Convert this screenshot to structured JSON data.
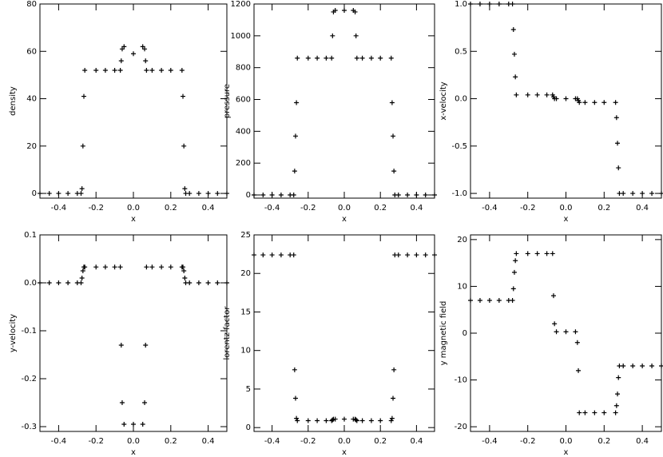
{
  "chart_data": [
    {
      "type": "scatter",
      "ylabel": "density",
      "xlabel": "x",
      "color": "#000000",
      "x": [
        -0.5,
        -0.45,
        -0.4,
        -0.35,
        -0.3,
        -0.28,
        -0.275,
        -0.27,
        -0.265,
        -0.26,
        -0.2,
        -0.15,
        -0.1,
        -0.07,
        -0.065,
        -0.06,
        -0.05,
        0,
        0.05,
        0.06,
        0.065,
        0.07,
        0.1,
        0.15,
        0.2,
        0.26,
        0.265,
        0.27,
        0.275,
        0.28,
        0.3,
        0.35,
        0.4,
        0.45,
        0.5
      ],
      "values": [
        0,
        0,
        0,
        0,
        0,
        0,
        2,
        20,
        41,
        52,
        52,
        52,
        52,
        52,
        56,
        61,
        62,
        59,
        62,
        61,
        56,
        52,
        52,
        52,
        52,
        52,
        41,
        20,
        2,
        0,
        0,
        0,
        0,
        0,
        0
      ],
      "xlim": [
        -0.5,
        0.5
      ],
      "xticks": [
        -0.4,
        -0.2,
        {
          "value": 0,
          "label": "0.0"
        },
        0.2,
        0.4
      ],
      "ylim": [
        -2,
        80
      ],
      "yticks": [
        0,
        20,
        40,
        60,
        80
      ]
    },
    {
      "type": "scatter",
      "ylabel": "pressure",
      "xlabel": "x",
      "color": "#000000",
      "x": [
        -0.5,
        -0.45,
        -0.4,
        -0.35,
        -0.3,
        -0.28,
        -0.275,
        -0.27,
        -0.265,
        -0.26,
        -0.2,
        -0.15,
        -0.1,
        -0.07,
        -0.065,
        -0.06,
        -0.05,
        0,
        0.05,
        0.06,
        0.065,
        0.07,
        0.1,
        0.15,
        0.2,
        0.26,
        0.265,
        0.27,
        0.275,
        0.28,
        0.3,
        0.35,
        0.4,
        0.45,
        0.5
      ],
      "values": [
        0,
        0,
        0,
        0,
        0,
        0,
        150,
        370,
        580,
        860,
        860,
        860,
        860,
        860,
        1000,
        1150,
        1160,
        1160,
        1160,
        1150,
        1000,
        860,
        860,
        860,
        860,
        860,
        580,
        370,
        150,
        0,
        0,
        0,
        0,
        0,
        0
      ],
      "xlim": [
        -0.5,
        0.5
      ],
      "xticks": [
        -0.4,
        -0.2,
        {
          "value": 0,
          "label": "0.0"
        },
        0.2,
        0.4
      ],
      "ylim": [
        -20,
        1200
      ],
      "yticks": [
        0,
        200,
        400,
        600,
        800,
        1000,
        1200
      ]
    },
    {
      "type": "scatter",
      "ylabel": "x-velocity",
      "xlabel": "x",
      "color": "#000000",
      "x": [
        -0.5,
        -0.45,
        -0.4,
        -0.35,
        -0.3,
        -0.28,
        -0.275,
        -0.27,
        -0.265,
        -0.26,
        -0.2,
        -0.15,
        -0.1,
        -0.07,
        -0.065,
        -0.06,
        -0.05,
        0,
        0.05,
        0.06,
        0.065,
        0.07,
        0.1,
        0.15,
        0.2,
        0.26,
        0.265,
        0.27,
        0.275,
        0.28,
        0.3,
        0.35,
        0.4,
        0.45,
        0.5
      ],
      "values": [
        1,
        1,
        1,
        1,
        1,
        1,
        0.73,
        0.47,
        0.23,
        0.04,
        0.04,
        0.04,
        0.04,
        0.04,
        0.02,
        0,
        0,
        0,
        0,
        0,
        -0.02,
        -0.04,
        -0.04,
        -0.04,
        -0.04,
        -0.04,
        -0.2,
        -0.47,
        -0.73,
        -1,
        -1,
        -1,
        -1,
        -1,
        -1
      ],
      "xlim": [
        -0.5,
        0.5
      ],
      "xticks": [
        -0.4,
        -0.2,
        {
          "value": 0,
          "label": "0.0"
        },
        0.2,
        0.4
      ],
      "ylim": [
        -1.05,
        1.0
      ],
      "yticks": [
        {
          "value": -1,
          "label": "-1.0"
        },
        -0.5,
        {
          "value": 0,
          "label": "0.0"
        },
        0.5,
        {
          "value": 1,
          "label": "1.0"
        }
      ]
    },
    {
      "type": "scatter",
      "ylabel": "y-velocity",
      "xlabel": "x",
      "color": "#000000",
      "x": [
        -0.5,
        -0.45,
        -0.4,
        -0.35,
        -0.3,
        -0.28,
        -0.275,
        -0.27,
        -0.265,
        -0.26,
        -0.2,
        -0.15,
        -0.1,
        -0.07,
        -0.065,
        -0.06,
        -0.05,
        0,
        0.05,
        0.06,
        0.065,
        0.07,
        0.1,
        0.15,
        0.2,
        0.26,
        0.265,
        0.27,
        0.275,
        0.28,
        0.3,
        0.35,
        0.4,
        0.45,
        0.5
      ],
      "values": [
        0,
        0,
        0,
        0,
        0,
        0,
        0.01,
        0.025,
        0.033,
        0.033,
        0.033,
        0.033,
        0.033,
        0.033,
        -0.13,
        -0.25,
        -0.295,
        -0.295,
        -0.295,
        -0.25,
        -0.13,
        0.033,
        0.033,
        0.033,
        0.033,
        0.033,
        0.033,
        0.025,
        0.01,
        0,
        0,
        0,
        0,
        0,
        0
      ],
      "xlim": [
        -0.5,
        0.5
      ],
      "xticks": [
        -0.4,
        -0.2,
        {
          "value": 0,
          "label": "0.0"
        },
        0.2,
        0.4
      ],
      "ylim": [
        -0.31,
        0.1
      ],
      "yticks": [
        -0.3,
        -0.2,
        -0.1,
        {
          "value": 0,
          "label": "0.0"
        },
        0.1
      ]
    },
    {
      "type": "scatter",
      "ylabel": "lorentz factor",
      "xlabel": "x",
      "color": "#000000",
      "x": [
        -0.5,
        -0.45,
        -0.4,
        -0.35,
        -0.3,
        -0.28,
        -0.275,
        -0.27,
        -0.265,
        -0.26,
        -0.2,
        -0.15,
        -0.1,
        -0.07,
        -0.065,
        -0.06,
        -0.05,
        0,
        0.05,
        0.06,
        0.065,
        0.07,
        0.1,
        0.15,
        0.2,
        0.26,
        0.265,
        0.27,
        0.275,
        0.28,
        0.3,
        0.35,
        0.4,
        0.45,
        0.5
      ],
      "values": [
        22.4,
        22.4,
        22.4,
        22.4,
        22.4,
        22.4,
        7.5,
        3.8,
        1.2,
        0.9,
        0.9,
        0.9,
        0.9,
        0.9,
        1.0,
        1.1,
        1.1,
        1.1,
        1.1,
        1.1,
        1.0,
        0.9,
        0.9,
        0.9,
        0.9,
        0.9,
        1.2,
        3.8,
        7.5,
        22.4,
        22.4,
        22.4,
        22.4,
        22.4,
        22.4
      ],
      "xlim": [
        -0.5,
        0.5
      ],
      "xticks": [
        -0.4,
        -0.2,
        {
          "value": 0,
          "label": "0.0"
        },
        0.2,
        0.4
      ],
      "ylim": [
        -0.5,
        25
      ],
      "yticks": [
        0,
        5,
        10,
        15,
        20,
        25
      ]
    },
    {
      "type": "scatter",
      "ylabel": "y magnetic field",
      "xlabel": "x",
      "color": "#000000",
      "x": [
        -0.5,
        -0.45,
        -0.4,
        -0.35,
        -0.3,
        -0.28,
        -0.275,
        -0.27,
        -0.265,
        -0.26,
        -0.2,
        -0.15,
        -0.1,
        -0.07,
        -0.065,
        -0.06,
        -0.05,
        0,
        0.05,
        0.06,
        0.065,
        0.07,
        0.1,
        0.15,
        0.2,
        0.26,
        0.265,
        0.27,
        0.275,
        0.28,
        0.3,
        0.35,
        0.4,
        0.45,
        0.5
      ],
      "values": [
        7,
        7,
        7,
        7,
        7,
        7,
        9.5,
        13,
        15.5,
        17,
        17,
        17,
        17,
        17,
        8,
        2,
        0.3,
        0.3,
        0.3,
        -2,
        -8,
        -17,
        -17,
        -17,
        -17,
        -17,
        -15.5,
        -13,
        -9.5,
        -7,
        -7,
        -7,
        -7,
        -7,
        -7
      ],
      "xlim": [
        -0.5,
        0.5
      ],
      "xticks": [
        -0.4,
        -0.2,
        {
          "value": 0,
          "label": "0.0"
        },
        0.2,
        0.4
      ],
      "ylim": [
        -21,
        21
      ],
      "yticks": [
        -20,
        -10,
        0,
        10,
        20
      ]
    }
  ]
}
